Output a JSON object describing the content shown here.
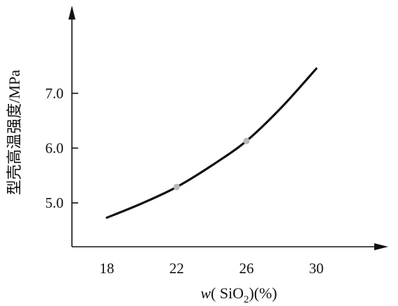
{
  "chart_data": {
    "type": "line",
    "title": "",
    "xlabel": {
      "prefix": "w",
      "main": "( SiO",
      "sub": "2",
      "suffix": ")(%)"
    },
    "ylabel": "型壳高温强度/MPa",
    "xlim": [
      16,
      34
    ],
    "ylim": [
      4.2,
      8.6
    ],
    "x_ticks": [
      18,
      22,
      26,
      30
    ],
    "x_tick_labels": [
      "18",
      "22",
      "26",
      "30"
    ],
    "y_ticks": [
      5.0,
      6.0,
      7.0
    ],
    "y_tick_labels": [
      "5.0",
      "6.0",
      "7.0"
    ],
    "grid": false,
    "series": [
      {
        "x": [
          18,
          20,
          22,
          24,
          26,
          28,
          30
        ],
        "y": [
          4.73,
          4.99,
          5.29,
          5.68,
          6.13,
          6.74,
          7.45
        ]
      }
    ],
    "highlighted_points": [
      {
        "x": 22,
        "y": 5.29
      },
      {
        "x": 26,
        "y": 6.13
      }
    ],
    "colors": {
      "axis": "#111111",
      "line": "#111111",
      "marker": "#b8b8b8"
    }
  }
}
